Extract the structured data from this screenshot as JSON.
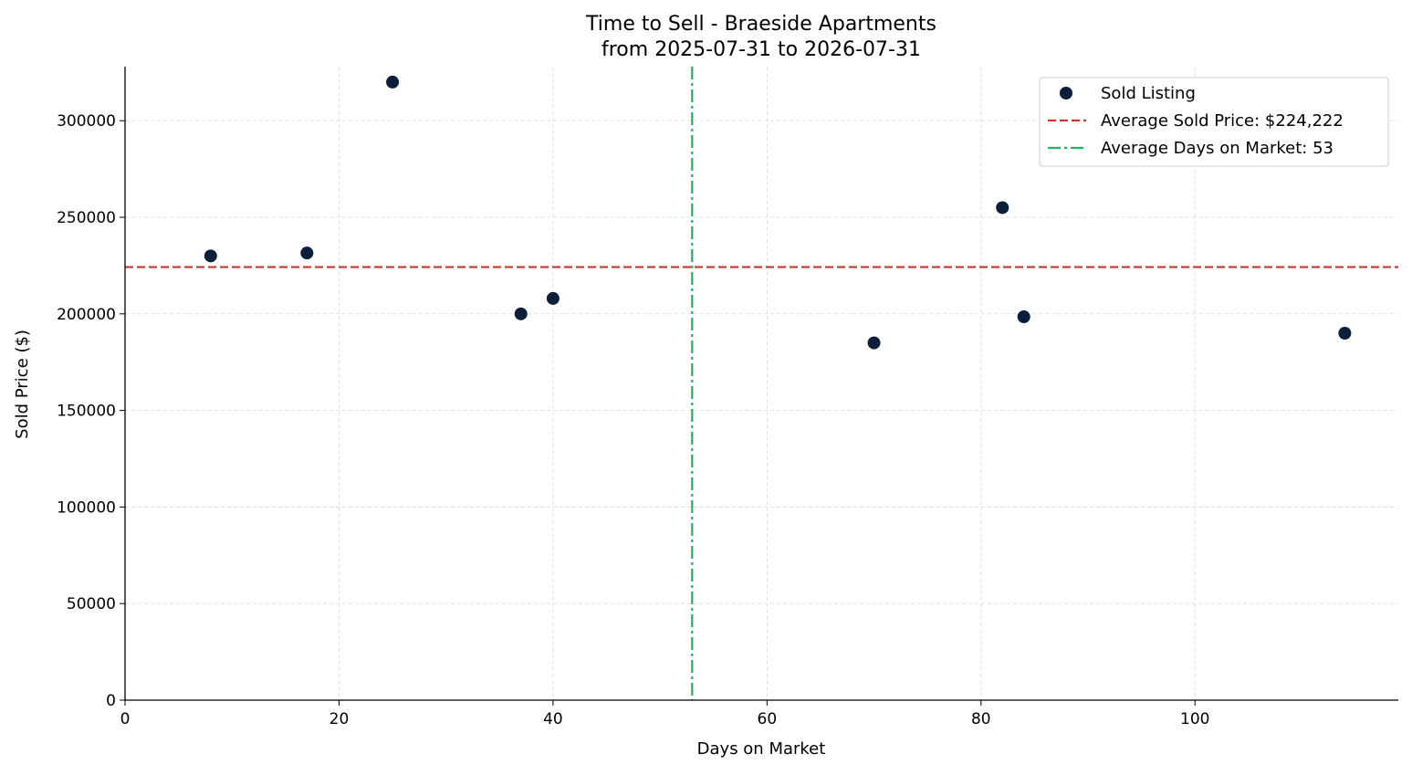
{
  "chart_data": {
    "type": "scatter",
    "title": "Time to Sell - Braeside Apartments",
    "subtitle": "from 2025-07-31 to 2026-07-31",
    "xlabel": "Days on Market",
    "ylabel": "Sold Price ($)",
    "xlim": [
      0,
      119
    ],
    "ylim": [
      0,
      328000
    ],
    "xticks": [
      0,
      20,
      40,
      60,
      80,
      100
    ],
    "yticks": [
      0,
      50000,
      100000,
      150000,
      200000,
      250000,
      300000
    ],
    "grid": true,
    "legend_position": "top-right",
    "series": [
      {
        "name": "Sold Listing",
        "color": "#0b1f3a",
        "points": [
          {
            "x": 8,
            "y": 230000
          },
          {
            "x": 17,
            "y": 231500
          },
          {
            "x": 25,
            "y": 320000
          },
          {
            "x": 37,
            "y": 200000
          },
          {
            "x": 40,
            "y": 208000
          },
          {
            "x": 70,
            "y": 185000
          },
          {
            "x": 82,
            "y": 255000
          },
          {
            "x": 84,
            "y": 198500
          },
          {
            "x": 114,
            "y": 190000
          }
        ]
      }
    ],
    "reference_lines": [
      {
        "name": "Average Sold Price: $224,222",
        "orientation": "horizontal",
        "value": 224222,
        "style": "dashed",
        "color": "#c0392b"
      },
      {
        "name": "Average Days on Market: 53",
        "orientation": "vertical",
        "value": 53,
        "style": "dashdot",
        "color": "#27ae60"
      }
    ]
  }
}
